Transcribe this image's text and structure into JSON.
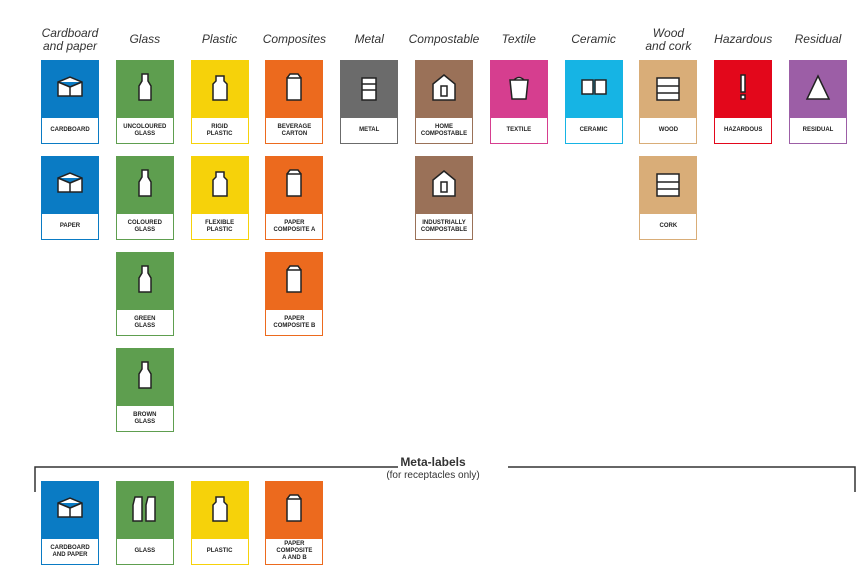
{
  "columns": [
    {
      "header": [
        "Cardboard",
        "and paper"
      ],
      "color": "#0a7bc4",
      "tiles": [
        {
          "label": [
            "CARDBOARD"
          ]
        },
        {
          "label": [
            "PAPER"
          ]
        }
      ]
    },
    {
      "header": [
        "Glass"
      ],
      "color": "#5e9e4f",
      "tiles": [
        {
          "label": [
            "UNCOLOURED",
            "GLASS"
          ]
        },
        {
          "label": [
            "COLOURED",
            "GLASS"
          ]
        },
        {
          "label": [
            "GREEN",
            "GLASS"
          ]
        },
        {
          "label": [
            "BROWN",
            "GLASS"
          ]
        }
      ]
    },
    {
      "header": [
        "Plastic"
      ],
      "color": "#f6d20a",
      "tiles": [
        {
          "label": [
            "RIGID",
            "PLASTIC"
          ]
        },
        {
          "label": [
            "FLEXIBLE",
            "PLASTIC"
          ]
        }
      ]
    },
    {
      "header": [
        "Composites"
      ],
      "color": "#ec6a1e",
      "tiles": [
        {
          "label": [
            "BEVERAGE",
            "CARTON"
          ]
        },
        {
          "label": [
            "PAPER",
            "COMPOSITE A"
          ]
        },
        {
          "label": [
            "PAPER",
            "COMPOSITE B"
          ]
        }
      ]
    },
    {
      "header": [
        "Metal"
      ],
      "color": "#6b6b6b",
      "tiles": [
        {
          "label": [
            "METAL"
          ]
        }
      ]
    },
    {
      "header": [
        "Compostable"
      ],
      "color": "#9a7158",
      "tiles": [
        {
          "label": [
            "HOME",
            "COMPOSTABLE"
          ]
        },
        {
          "label": [
            "INDUSTRIALLY",
            "COMPOSTABLE"
          ]
        }
      ]
    },
    {
      "header": [
        "Textile"
      ],
      "color": "#d63e8f",
      "tiles": [
        {
          "label": [
            "TEXTILE"
          ]
        }
      ]
    },
    {
      "header": [
        "Ceramic"
      ],
      "color": "#16b4e4",
      "tiles": [
        {
          "label": [
            "CERAMIC"
          ]
        }
      ]
    },
    {
      "header": [
        "Wood",
        "and cork"
      ],
      "color": "#d9ad78",
      "tiles": [
        {
          "label": [
            "WOOD"
          ]
        },
        {
          "label": [
            "CORK"
          ]
        }
      ]
    },
    {
      "header": [
        "Hazardous"
      ],
      "color": "#e3071b",
      "tiles": [
        {
          "label": [
            "HAZARDOUS"
          ]
        }
      ]
    },
    {
      "header": [
        "Residual"
      ],
      "color": "#9c5ea6",
      "tiles": [
        {
          "label": [
            "RESIDUAL"
          ]
        }
      ]
    }
  ],
  "meta": {
    "title": "Meta-labels",
    "subtitle": "(for receptacles only)",
    "tiles": [
      {
        "label": [
          "CARDBOARD",
          "AND PAPER"
        ],
        "color": "#0a7bc4"
      },
      {
        "label": [
          "GLASS"
        ],
        "color": "#5e9e4f"
      },
      {
        "label": [
          "PLASTIC"
        ],
        "color": "#f6d20a"
      },
      {
        "label": [
          "PAPER",
          "COMPOSITE",
          "A AND B"
        ],
        "color": "#ec6a1e"
      }
    ]
  }
}
